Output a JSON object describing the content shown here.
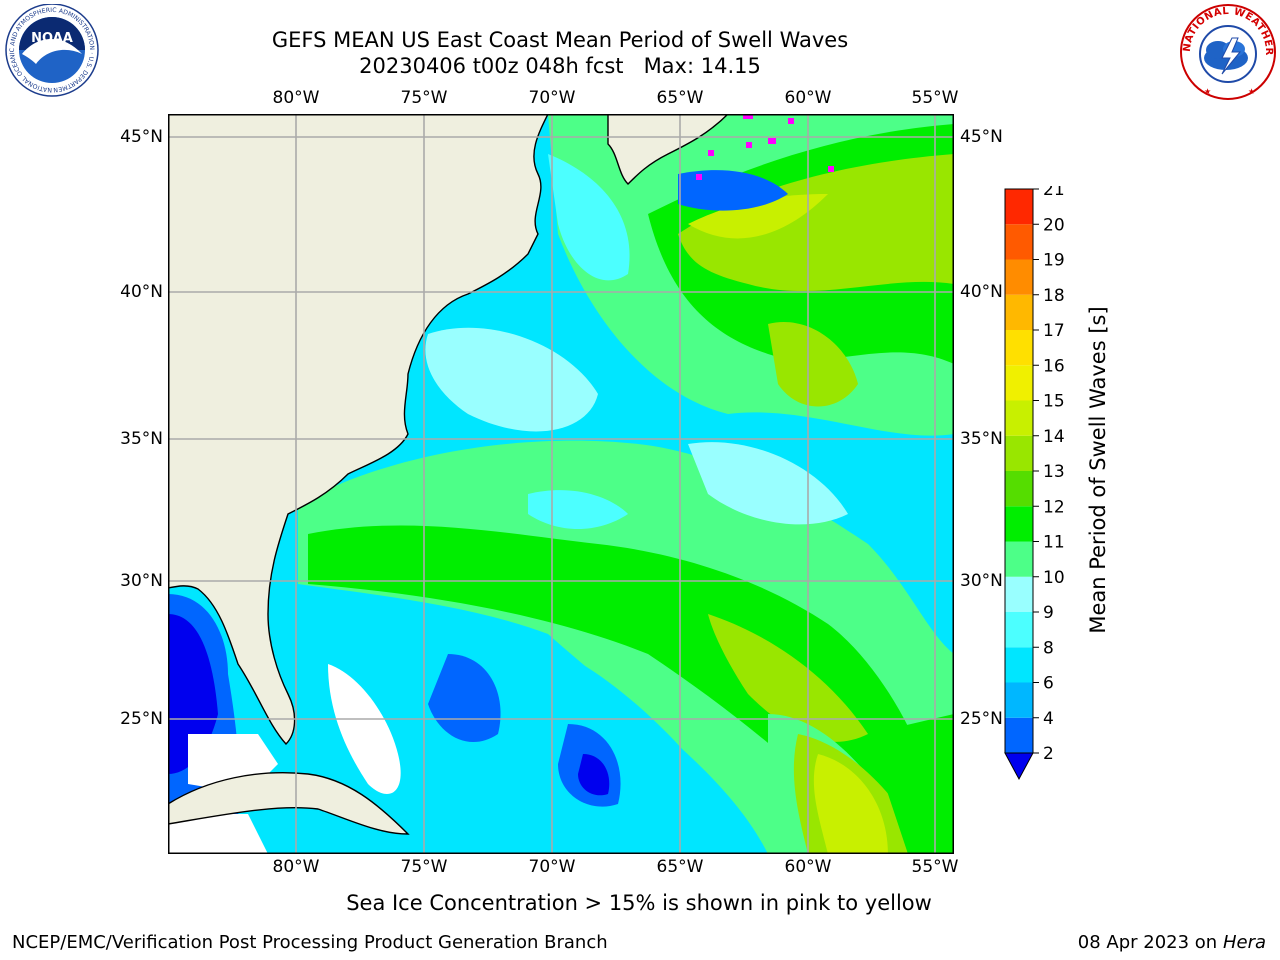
{
  "header": {
    "title_line1": "GEFS MEAN US East Coast Mean Period of Swell Waves",
    "title_line2": "20230406 t00z 048h fcst   Max: 14.15"
  },
  "logos": {
    "noaa": {
      "text": "NOAA",
      "ring_text": "NATIONAL OCEANIC AND ATMOSPHERIC ADMINISTRATION · U.S. DEPARTMENT OF COMMERCE",
      "icon": "noaa-logo"
    },
    "nws": {
      "ring_text": "NATIONAL WEATHER SERVICE",
      "icon": "nws-logo"
    }
  },
  "map": {
    "lon_labels_top": [
      "80°W",
      "75°W",
      "70°W",
      "65°W",
      "60°W",
      "55°W"
    ],
    "lon_labels_bottom": [
      "80°W",
      "75°W",
      "70°W",
      "65°W",
      "60°W",
      "55°W"
    ],
    "lat_labels_left": [
      "45°N",
      "40°N",
      "35°N",
      "30°N",
      "25°N"
    ],
    "lat_labels_right": [
      "45°N",
      "40°N",
      "35°N",
      "30°N",
      "25°N"
    ],
    "colors": {
      "land": "#efefdf",
      "grid": "#aaaaaa",
      "coast": "#000000",
      "ice": "#ff00ff"
    }
  },
  "colorbar": {
    "label": "Mean Period of Swell Waves [s]",
    "ticks": [
      "2",
      "4",
      "6",
      "8",
      "9",
      "10",
      "11",
      "12",
      "13",
      "14",
      "15",
      "16",
      "17",
      "18",
      "19",
      "20",
      "21"
    ],
    "colors": [
      "#0066ff",
      "#00b7ff",
      "#00e6ff",
      "#4cffff",
      "#99ffff",
      "#4dff88",
      "#00ee00",
      "#55dd00",
      "#99e600",
      "#c8f000",
      "#f0f000",
      "#ffe000",
      "#ffb800",
      "#ff8c00",
      "#ff5a00",
      "#ff2800"
    ],
    "under_color": "#0000ee"
  },
  "footer": {
    "sea_ice_note": "Sea Ice Concentration > 15% is shown in pink to yellow",
    "credit": "NCEP/EMC/Verification Post Processing Product Generation Branch",
    "date_text": "08 Apr 2023 on ",
    "host": "Hera"
  }
}
